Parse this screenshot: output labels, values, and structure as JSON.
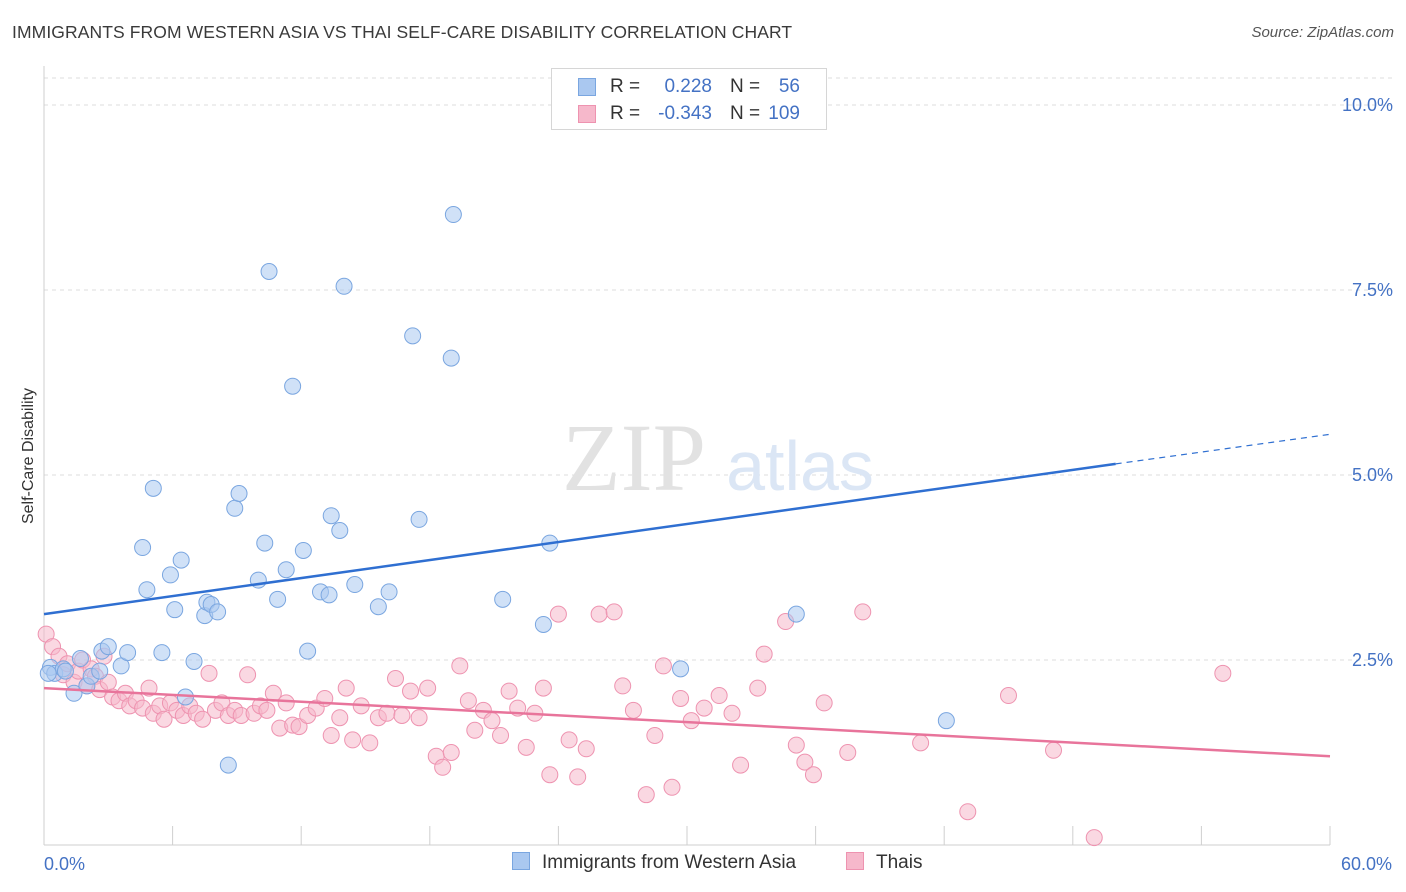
{
  "title": "IMMIGRANTS FROM WESTERN ASIA VS THAI SELF-CARE DISABILITY CORRELATION CHART",
  "source": "Source: ZipAtlas.com",
  "watermark": {
    "zip": "ZIP",
    "atlas": "atlas"
  },
  "legend_top": {
    "rows": [
      {
        "r_label": "R =",
        "r_value": "0.228",
        "n_label": "N =",
        "n_value": "56"
      },
      {
        "r_label": "R =",
        "r_value": "-0.343",
        "n_label": "N =",
        "n_value": "109"
      }
    ]
  },
  "legend_bottom": [
    {
      "label": "Immigrants from Western Asia"
    },
    {
      "label": "Thais"
    }
  ],
  "colors": {
    "blue_fill": "#aac8f0",
    "blue_stroke": "#7aa6e0",
    "blue_line": "#2f6fd1",
    "pink_fill": "#f6b8cb",
    "pink_stroke": "#ee93b0",
    "pink_line": "#e8749b",
    "tick_label": "#4472c4",
    "grid": "#dcdcdc"
  },
  "chart_data": {
    "type": "scatter",
    "title": "IMMIGRANTS FROM WESTERN ASIA VS THAI SELF-CARE DISABILITY CORRELATION CHART",
    "xlabel": "",
    "ylabel": "Self-Care Disability",
    "xlim": [
      0,
      60
    ],
    "ylim": [
      0,
      10.5
    ],
    "x_tick_labels": [
      "0.0%",
      "60.0%"
    ],
    "y_ticks": [
      2.5,
      5.0,
      7.5,
      10.0
    ],
    "y_tick_labels": [
      "2.5%",
      "5.0%",
      "7.5%",
      "10.0%"
    ],
    "grid": "horizontal dashed",
    "legend_position": "top-center",
    "series": [
      {
        "name": "Immigrants from Western Asia",
        "R": 0.228,
        "N": 56,
        "trend": {
          "x": [
            0,
            50
          ],
          "y": [
            3.12,
            5.15
          ],
          "dashed_to": [
            60,
            5.55
          ]
        },
        "points": [
          [
            0.3,
            2.4
          ],
          [
            0.5,
            2.32
          ],
          [
            0.9,
            2.38
          ],
          [
            1.0,
            2.35
          ],
          [
            1.4,
            2.05
          ],
          [
            1.7,
            2.52
          ],
          [
            2.0,
            2.15
          ],
          [
            2.2,
            2.28
          ],
          [
            2.6,
            2.35
          ],
          [
            2.7,
            2.62
          ],
          [
            3.0,
            2.68
          ],
          [
            3.6,
            2.42
          ],
          [
            3.9,
            2.6
          ],
          [
            4.6,
            4.02
          ],
          [
            4.8,
            3.45
          ],
          [
            5.1,
            4.82
          ],
          [
            5.5,
            2.6
          ],
          [
            5.9,
            3.65
          ],
          [
            6.1,
            3.18
          ],
          [
            6.4,
            3.85
          ],
          [
            6.6,
            2.0
          ],
          [
            7.0,
            2.48
          ],
          [
            7.5,
            3.1
          ],
          [
            7.6,
            3.28
          ],
          [
            7.8,
            3.25
          ],
          [
            8.1,
            3.15
          ],
          [
            8.6,
            1.08
          ],
          [
            8.9,
            4.55
          ],
          [
            9.1,
            4.75
          ],
          [
            10.0,
            3.58
          ],
          [
            10.3,
            4.08
          ],
          [
            10.5,
            7.75
          ],
          [
            10.9,
            3.32
          ],
          [
            11.3,
            3.72
          ],
          [
            11.6,
            6.2
          ],
          [
            12.1,
            3.98
          ],
          [
            12.3,
            2.62
          ],
          [
            12.9,
            3.42
          ],
          [
            13.3,
            3.38
          ],
          [
            13.4,
            4.45
          ],
          [
            13.8,
            4.25
          ],
          [
            14.0,
            7.55
          ],
          [
            14.5,
            3.52
          ],
          [
            15.6,
            3.22
          ],
          [
            16.1,
            3.42
          ],
          [
            17.2,
            6.88
          ],
          [
            17.5,
            4.4
          ],
          [
            19.0,
            6.58
          ],
          [
            19.1,
            8.52
          ],
          [
            21.4,
            3.32
          ],
          [
            23.3,
            2.98
          ],
          [
            23.6,
            4.08
          ],
          [
            29.7,
            2.38
          ],
          [
            35.1,
            3.12
          ],
          [
            42.1,
            1.68
          ],
          [
            0.2,
            2.32
          ]
        ]
      },
      {
        "name": "Thais",
        "R": -0.343,
        "N": 109,
        "trend": {
          "x": [
            0,
            60
          ],
          "y": [
            2.12,
            1.2
          ]
        },
        "points": [
          [
            0.1,
            2.85
          ],
          [
            0.4,
            2.68
          ],
          [
            0.7,
            2.55
          ],
          [
            0.9,
            2.3
          ],
          [
            1.1,
            2.45
          ],
          [
            1.4,
            2.2
          ],
          [
            1.6,
            2.35
          ],
          [
            1.8,
            2.5
          ],
          [
            2.0,
            2.15
          ],
          [
            2.2,
            2.38
          ],
          [
            2.4,
            2.28
          ],
          [
            2.6,
            2.1
          ],
          [
            2.8,
            2.55
          ],
          [
            3.0,
            2.2
          ],
          [
            3.2,
            2.0
          ],
          [
            3.5,
            1.95
          ],
          [
            3.8,
            2.05
          ],
          [
            4.0,
            1.88
          ],
          [
            4.3,
            1.95
          ],
          [
            4.6,
            1.85
          ],
          [
            4.9,
            2.12
          ],
          [
            5.1,
            1.78
          ],
          [
            5.4,
            1.88
          ],
          [
            5.6,
            1.7
          ],
          [
            5.9,
            1.92
          ],
          [
            6.2,
            1.82
          ],
          [
            6.5,
            1.75
          ],
          [
            6.8,
            1.88
          ],
          [
            7.1,
            1.78
          ],
          [
            7.4,
            1.7
          ],
          [
            7.7,
            2.32
          ],
          [
            8.0,
            1.82
          ],
          [
            8.3,
            1.92
          ],
          [
            8.6,
            1.75
          ],
          [
            8.9,
            1.82
          ],
          [
            9.2,
            1.75
          ],
          [
            9.5,
            2.3
          ],
          [
            9.8,
            1.78
          ],
          [
            10.1,
            1.88
          ],
          [
            10.4,
            1.82
          ],
          [
            10.7,
            2.05
          ],
          [
            11.0,
            1.58
          ],
          [
            11.3,
            1.92
          ],
          [
            11.6,
            1.62
          ],
          [
            11.9,
            1.6
          ],
          [
            12.3,
            1.75
          ],
          [
            12.7,
            1.85
          ],
          [
            13.1,
            1.98
          ],
          [
            13.4,
            1.48
          ],
          [
            13.8,
            1.72
          ],
          [
            14.1,
            2.12
          ],
          [
            14.4,
            1.42
          ],
          [
            14.8,
            1.88
          ],
          [
            15.2,
            1.38
          ],
          [
            15.6,
            1.72
          ],
          [
            16.0,
            1.78
          ],
          [
            16.4,
            2.25
          ],
          [
            16.7,
            1.75
          ],
          [
            17.1,
            2.08
          ],
          [
            17.5,
            1.72
          ],
          [
            17.9,
            2.12
          ],
          [
            18.3,
            1.2
          ],
          [
            18.6,
            1.05
          ],
          [
            19.0,
            1.25
          ],
          [
            19.4,
            2.42
          ],
          [
            19.8,
            1.95
          ],
          [
            20.1,
            1.55
          ],
          [
            20.5,
            1.82
          ],
          [
            20.9,
            1.68
          ],
          [
            21.3,
            1.48
          ],
          [
            21.7,
            2.08
          ],
          [
            22.1,
            1.85
          ],
          [
            22.5,
            1.32
          ],
          [
            22.9,
            1.78
          ],
          [
            23.3,
            2.12
          ],
          [
            23.6,
            0.95
          ],
          [
            24.0,
            3.12
          ],
          [
            24.5,
            1.42
          ],
          [
            24.9,
            0.92
          ],
          [
            25.3,
            1.3
          ],
          [
            25.9,
            3.12
          ],
          [
            26.6,
            3.15
          ],
          [
            27.0,
            2.15
          ],
          [
            27.5,
            1.82
          ],
          [
            28.1,
            0.68
          ],
          [
            28.5,
            1.48
          ],
          [
            28.9,
            2.42
          ],
          [
            29.3,
            0.78
          ],
          [
            29.7,
            1.98
          ],
          [
            30.2,
            1.68
          ],
          [
            30.8,
            1.85
          ],
          [
            31.5,
            2.02
          ],
          [
            32.1,
            1.78
          ],
          [
            32.5,
            1.08
          ],
          [
            33.3,
            2.12
          ],
          [
            33.6,
            2.58
          ],
          [
            34.6,
            3.02
          ],
          [
            35.1,
            1.35
          ],
          [
            35.5,
            1.12
          ],
          [
            35.9,
            0.95
          ],
          [
            36.4,
            1.92
          ],
          [
            37.5,
            1.25
          ],
          [
            38.2,
            3.15
          ],
          [
            40.9,
            1.38
          ],
          [
            43.1,
            0.45
          ],
          [
            45.0,
            2.02
          ],
          [
            47.1,
            1.28
          ],
          [
            49.0,
            0.1
          ],
          [
            55.0,
            2.32
          ]
        ]
      }
    ]
  }
}
